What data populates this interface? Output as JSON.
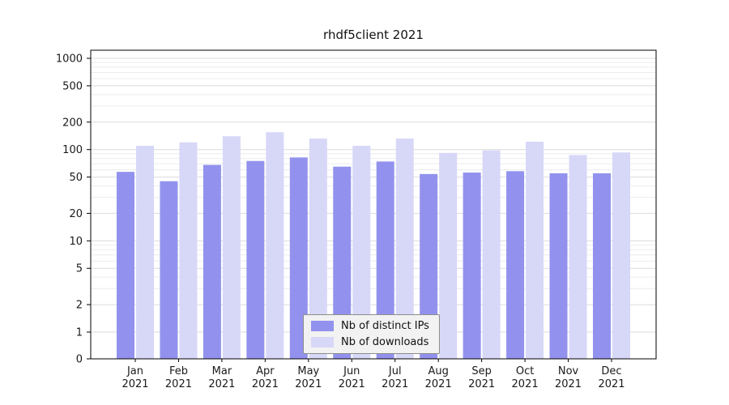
{
  "title": "rhdf5client 2021",
  "chart_data": {
    "type": "bar",
    "title": "rhdf5client 2021",
    "categories": [
      "Jan 2021",
      "Feb 2021",
      "Mar 2021",
      "Apr 2021",
      "May 2021",
      "Jun 2021",
      "Jul 2021",
      "Aug 2021",
      "Sep 2021",
      "Oct 2021",
      "Nov 2021",
      "Dec 2021"
    ],
    "series": [
      {
        "name": "Nb of distinct IPs",
        "color": "#9292ee",
        "values": [
          57,
          45,
          68,
          75,
          82,
          65,
          74,
          54,
          56,
          58,
          55,
          55
        ]
      },
      {
        "name": "Nb of downloads",
        "color": "#d7d7f8",
        "values": [
          110,
          120,
          140,
          155,
          132,
          110,
          132,
          92,
          98,
          122,
          87,
          93
        ]
      }
    ],
    "yticks": [
      1000,
      500,
      200,
      100,
      50,
      20,
      10,
      5,
      2,
      1,
      0
    ],
    "yscale": "log",
    "ylim": [
      0,
      1000
    ],
    "grid": true,
    "legend_position": "bottom-center",
    "colors": {
      "axis": "#000000",
      "grid_major": "#dbdbdb",
      "grid_minor": "#ececec",
      "text": "#1a1a1a"
    }
  }
}
